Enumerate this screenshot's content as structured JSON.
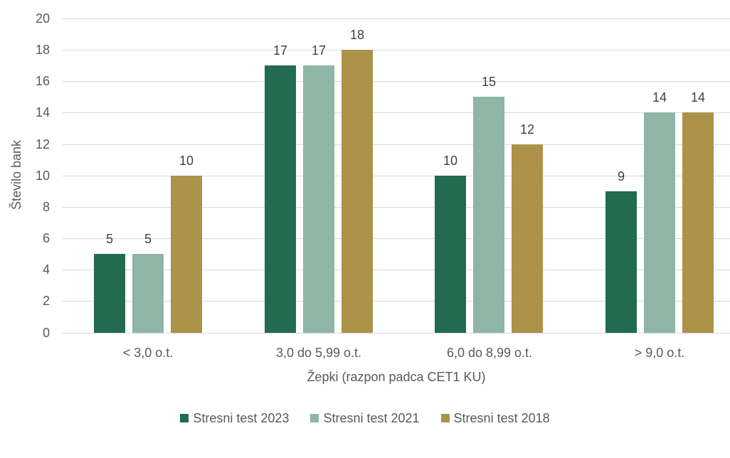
{
  "chart_data": {
    "type": "bar",
    "title": "",
    "categories": [
      "< 3,0 o.t.",
      "3,0 do 5,99 o.t.",
      "6,0 do 8,99 o.t.",
      "> 9,0 o.t."
    ],
    "series": [
      {
        "name": "Stresni test 2023",
        "color": "#226B51",
        "values": [
          5,
          17,
          10,
          9
        ]
      },
      {
        "name": "Stresni test 2021",
        "color": "#8FB5A6",
        "values": [
          5,
          17,
          15,
          14
        ]
      },
      {
        "name": "Stresni test 2018",
        "color": "#AD9249",
        "values": [
          10,
          18,
          12,
          14
        ]
      }
    ],
    "xlabel": "Žepki (razpon padca CET1 KU)",
    "ylabel": "Število bank",
    "ylim": [
      0,
      20
    ],
    "yticks": [
      0,
      2,
      4,
      6,
      8,
      10,
      12,
      14,
      16,
      18,
      20
    ],
    "grid": true,
    "value_labels": true,
    "legend_position": "bottom"
  },
  "colors": {
    "gridline": "#D9D9D9",
    "axis_text": "#595959",
    "value_label_text": "#404040",
    "background": "#FFFFFF"
  }
}
